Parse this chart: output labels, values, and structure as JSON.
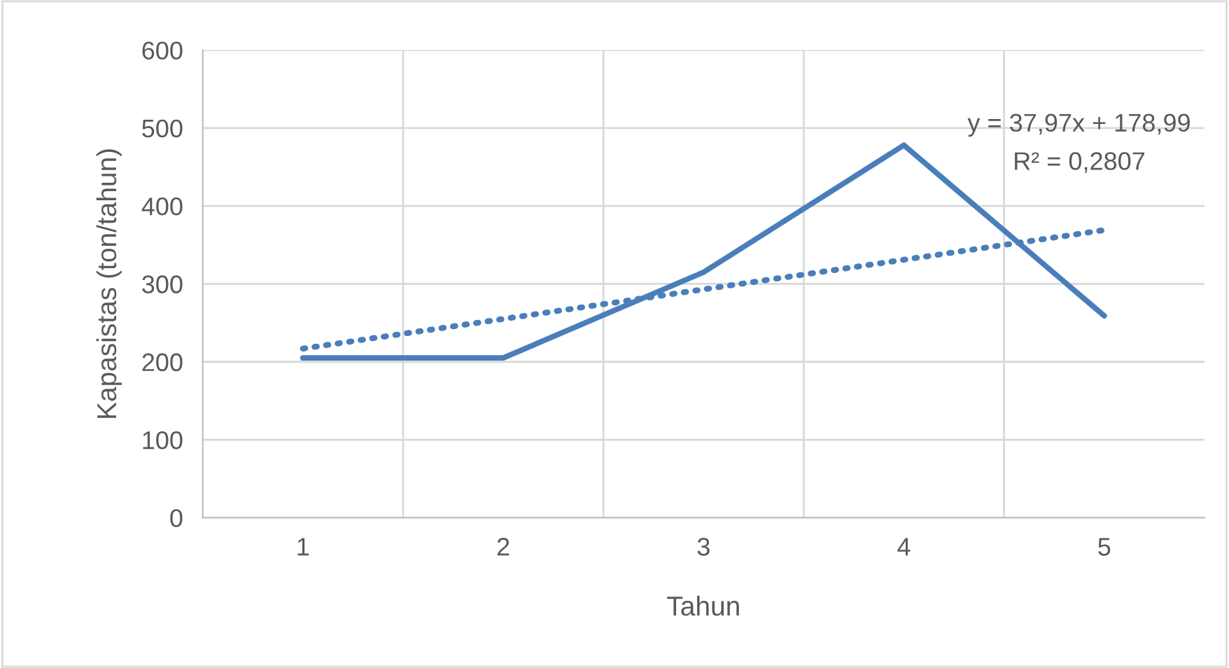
{
  "chart_data": {
    "type": "line",
    "xlabel": "Tahun",
    "ylabel": "Kapasistas (ton/tahun)",
    "categories": [
      "1",
      "2",
      "3",
      "4",
      "5"
    ],
    "series": [
      {
        "color": "#4a7ebb",
        "values": [
          205,
          205,
          315,
          478,
          259
        ],
        "line_style": "solid"
      },
      {
        "color": "#4a7ebb",
        "values": [
          217,
          255,
          293,
          331,
          369
        ],
        "line_style": "dotted"
      }
    ],
    "ylim": [
      0,
      600
    ],
    "yticks": [
      0,
      100,
      200,
      300,
      400,
      500,
      600
    ],
    "grid": true,
    "marker": "none",
    "annotations": [
      "y = 37,97x + 178,99",
      "R² = 0,2807"
    ]
  }
}
